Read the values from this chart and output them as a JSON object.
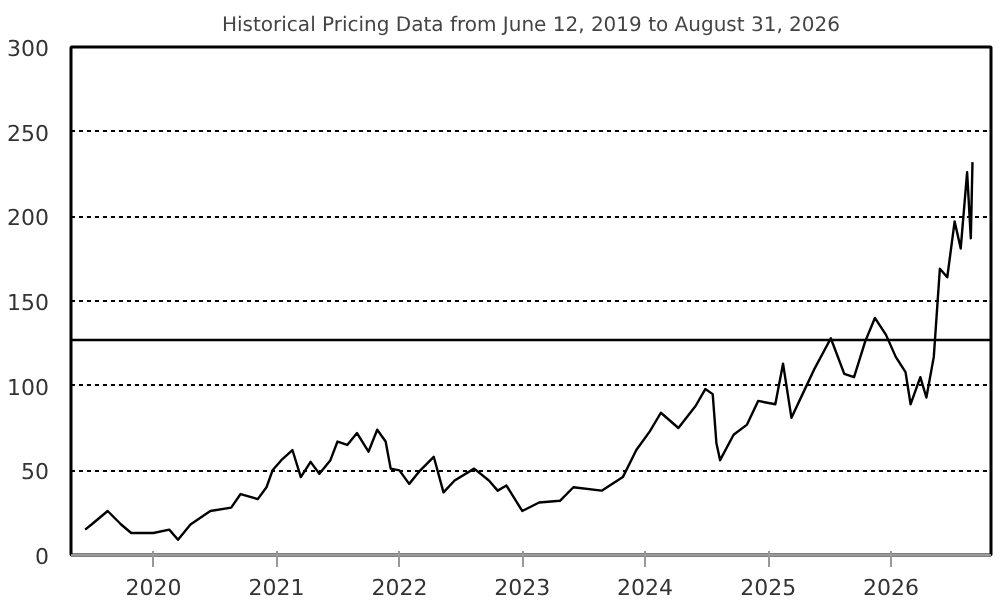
{
  "chart_data": {
    "type": "line",
    "title": "Historical Pricing Data from June 12, 2019 to August 31, 2026",
    "x": [
      "2019-06-12",
      "2019-07-01",
      "2019-08-18",
      "2019-09-27",
      "2019-10-27",
      "2020-01-01",
      "2020-02-17",
      "2020-03-14",
      "2020-04-20",
      "2020-06-18",
      "2020-08-19",
      "2020-09-16",
      "2020-11-06",
      "2020-12-02",
      "2020-12-20",
      "2021-01-15",
      "2021-02-17",
      "2021-03-14",
      "2021-04-12",
      "2021-05-08",
      "2021-06-10",
      "2021-07-01",
      "2021-07-30",
      "2021-08-28",
      "2021-10-01",
      "2021-10-27",
      "2021-11-21",
      "2021-12-06",
      "2022-01-01",
      "2022-01-30",
      "2022-03-04",
      "2022-04-13",
      "2022-05-12",
      "2022-06-14",
      "2022-08-11",
      "2022-09-24",
      "2022-10-20",
      "2022-11-15",
      "2023-01-01",
      "2023-02-20",
      "2023-04-23",
      "2023-06-02",
      "2023-08-25",
      "2023-10-27",
      "2023-12-06",
      "2024-01-15",
      "2024-02-17",
      "2024-04-09",
      "2024-05-30",
      "2024-06-28",
      "2024-07-20",
      "2024-07-31",
      "2024-08-11",
      "2024-09-20",
      "2024-10-30",
      "2024-12-02",
      "2025-01-22",
      "2025-02-14",
      "2025-03-11",
      "2025-04-13",
      "2025-05-16",
      "2025-07-06",
      "2025-08-15",
      "2025-09-13",
      "2025-10-16",
      "2025-11-14",
      "2025-12-17",
      "2026-01-15",
      "2026-02-13",
      "2026-02-28",
      "2026-03-29",
      "2026-04-16",
      "2026-05-08",
      "2026-05-26",
      "2026-06-17",
      "2026-07-09",
      "2026-07-27",
      "2026-08-15",
      "2026-08-26",
      "2026-08-31"
    ],
    "series": [
      {
        "color": "#000000",
        "values": [
          15,
          18,
          26,
          18,
          13,
          13,
          15,
          9,
          18,
          26,
          28,
          36,
          33,
          40,
          50,
          56,
          62,
          46,
          55,
          48,
          56,
          67,
          65,
          72,
          61,
          74,
          67,
          51,
          50,
          42,
          50,
          58,
          37,
          44,
          51,
          44,
          38,
          41,
          26,
          31,
          32,
          40,
          38,
          46,
          62,
          73,
          84,
          75,
          88,
          98,
          95,
          66,
          56,
          71,
          77,
          91,
          89,
          113,
          81,
          95,
          109,
          128,
          107,
          105,
          126,
          140,
          130,
          117,
          108,
          89,
          105,
          93,
          117,
          169,
          164,
          197,
          181,
          226,
          187,
          232
        ]
      }
    ],
    "xlim": [
      "2019-05-01",
      "2026-10-25"
    ],
    "xticks": [
      "2020",
      "2021",
      "2022",
      "2023",
      "2024",
      "2025",
      "2026"
    ],
    "ylim": [
      0,
      300
    ],
    "yticks": [
      0,
      50,
      100,
      150,
      200,
      250,
      300
    ],
    "grid": "y",
    "ref_lines": [
      {
        "axis": "y",
        "value": 127,
        "color": "#000000",
        "line_style": "solid"
      }
    ]
  }
}
